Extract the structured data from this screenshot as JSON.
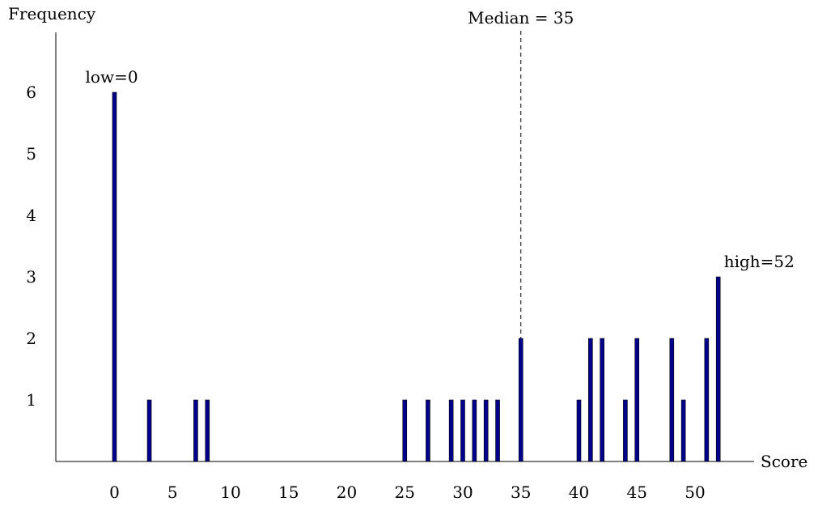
{
  "chart_data": {
    "type": "bar",
    "xlabel": "Score",
    "ylabel": "Frequency",
    "xlim": [
      -5,
      55
    ],
    "ylim": [
      0,
      7
    ],
    "x_ticks": [
      0,
      5,
      10,
      15,
      20,
      25,
      30,
      35,
      40,
      45,
      50
    ],
    "y_ticks": [
      1,
      2,
      3,
      4,
      5,
      6
    ],
    "bar_color": "#00008B",
    "grid": false,
    "legend": "none",
    "x": [
      0,
      3,
      7,
      8,
      25,
      27,
      29,
      30,
      31,
      32,
      33,
      35,
      40,
      41,
      42,
      44,
      45,
      48,
      49,
      51,
      52
    ],
    "values": [
      6,
      1,
      1,
      1,
      1,
      1,
      1,
      1,
      1,
      1,
      1,
      2,
      1,
      2,
      2,
      1,
      2,
      2,
      1,
      2,
      3
    ],
    "median": {
      "value": 35,
      "label": "Median = 35"
    },
    "annotations": [
      {
        "text": "low=0",
        "x": 0,
        "y": 6
      },
      {
        "text": "high=52",
        "x": 52,
        "y": 3
      }
    ]
  }
}
